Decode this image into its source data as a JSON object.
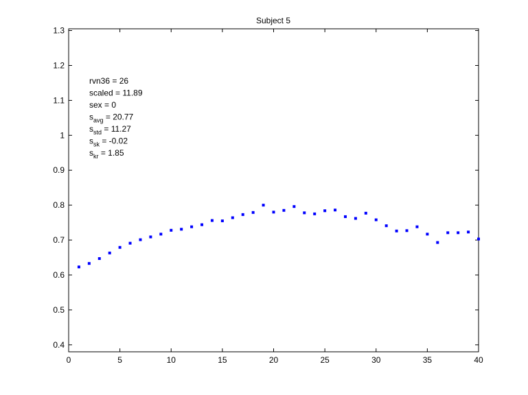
{
  "chart_data": {
    "type": "scatter",
    "title": "Subject 5",
    "xlabel": "",
    "ylabel": "",
    "xlim": [
      0,
      40
    ],
    "ylim": [
      0.38,
      1.305
    ],
    "xticks": [
      0,
      5,
      10,
      15,
      20,
      25,
      30,
      35,
      40
    ],
    "yticks": [
      0.4,
      0.5,
      0.6,
      0.7,
      0.8,
      0.9,
      1,
      1.1,
      1.2,
      1.3
    ],
    "grid": false,
    "marker_color": "#0000ff",
    "x": [
      1,
      2,
      3,
      4,
      5,
      6,
      7,
      8,
      9,
      10,
      11,
      12,
      13,
      14,
      15,
      16,
      17,
      18,
      19,
      20,
      21,
      22,
      23,
      24,
      25,
      26,
      27,
      28,
      29,
      30,
      31,
      32,
      33,
      34,
      35,
      36,
      37,
      38,
      39,
      40
    ],
    "y": [
      0.623,
      0.633,
      0.647,
      0.663,
      0.679,
      0.691,
      0.701,
      0.709,
      0.717,
      0.728,
      0.731,
      0.738,
      0.744,
      0.756,
      0.755,
      0.764,
      0.773,
      0.779,
      0.8,
      0.78,
      0.785,
      0.796,
      0.778,
      0.775,
      0.784,
      0.786,
      0.767,
      0.762,
      0.777,
      0.758,
      0.741,
      0.726,
      0.727,
      0.738,
      0.717,
      0.693,
      0.721,
      0.721,
      0.723,
      0.703
    ],
    "annotations": [
      {
        "main": "rvn36 = 26",
        "sub": "",
        "rest": ""
      },
      {
        "main": "scaled = 11.89",
        "sub": "",
        "rest": ""
      },
      {
        "main": "sex   = 0",
        "sub": "",
        "rest": ""
      },
      {
        "main": "s",
        "sub": "avg",
        "rest": " = 20.77"
      },
      {
        "main": "s",
        "sub": "std",
        "rest": " = 11.27"
      },
      {
        "main": "s",
        "sub": "sk",
        "rest": " = -0.02"
      },
      {
        "main": "s",
        "sub": "kr",
        "rest": " = 1.85"
      }
    ]
  }
}
